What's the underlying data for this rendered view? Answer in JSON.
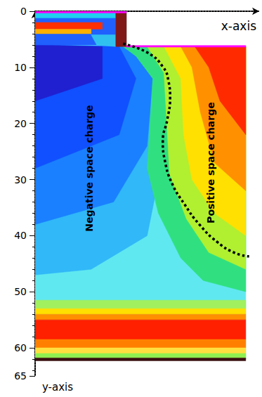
{
  "chart_data": {
    "type": "line",
    "x_label": "x-axis",
    "y_label": "y-axis",
    "xlim": [
      0,
      40
    ],
    "xticks": [],
    "ylim": [
      0,
      65
    ],
    "yticks": [
      0,
      10,
      20,
      30,
      40,
      50,
      60
    ],
    "tick_labels": "y",
    "grid": false,
    "series": [
      {
        "color": "#000000",
        "line_style": "dotted",
        "x": [
          15.7,
          20.1,
          22.8,
          23.8,
          24.1,
          23.6,
          22.8,
          23.2,
          24.4,
          26.6,
          29.4,
          32.6,
          35.7,
          38.2
        ],
        "values": [
          5.8,
          7.4,
          9.9,
          12.4,
          15.5,
          19.3,
          23.1,
          26.8,
          30.6,
          34.3,
          38.1,
          41.2,
          43.1,
          43.7
        ]
      }
    ],
    "annotations": [
      {
        "text": "Negative space charge",
        "x": 9.6,
        "y": 28
      },
      {
        "text": "Positive space charge",
        "x": 31.3,
        "y": 27
      }
    ],
    "regions": [
      {
        "color": "#60e8f0",
        "points": [
          [
            0,
            0
          ],
          [
            16.3,
            0
          ],
          [
            16.3,
            6.3
          ],
          [
            37.6,
            6.3
          ],
          [
            37.6,
            62
          ],
          [
            0,
            62
          ]
        ]
      },
      {
        "color": "#30b8f8",
        "points": [
          [
            0,
            6
          ],
          [
            18,
            6.3
          ],
          [
            23,
            12
          ],
          [
            23,
            25
          ],
          [
            20,
            40
          ],
          [
            10,
            46
          ],
          [
            0,
            47
          ]
        ]
      },
      {
        "color": "#1a80ff",
        "points": [
          [
            0,
            6
          ],
          [
            17,
            6.3
          ],
          [
            21,
            12
          ],
          [
            20,
            24
          ],
          [
            14,
            34
          ],
          [
            0,
            38
          ]
        ]
      },
      {
        "color": "#1050ff",
        "points": [
          [
            0,
            6
          ],
          [
            15,
            6.3
          ],
          [
            18,
            12
          ],
          [
            15,
            22
          ],
          [
            0,
            28
          ]
        ]
      },
      {
        "color": "#2020d0",
        "points": [
          [
            0,
            6
          ],
          [
            12,
            6.3
          ],
          [
            12,
            12
          ],
          [
            0,
            16
          ]
        ]
      },
      {
        "color": "#30e080",
        "points": [
          [
            15.7,
            6.3
          ],
          [
            37.6,
            6.3
          ],
          [
            37.6,
            50
          ],
          [
            30,
            48
          ],
          [
            26,
            44
          ],
          [
            22,
            36
          ],
          [
            20,
            28
          ],
          [
            20.5,
            20
          ],
          [
            21,
            12
          ],
          [
            18,
            8
          ]
        ]
      },
      {
        "color": "#b0f030",
        "points": [
          [
            20,
            6.3
          ],
          [
            37.6,
            6.3
          ],
          [
            37.6,
            46
          ],
          [
            31,
            43
          ],
          [
            27,
            37
          ],
          [
            24,
            29
          ],
          [
            23.5,
            20
          ],
          [
            23,
            11
          ]
        ]
      },
      {
        "color": "#ffe000",
        "points": [
          [
            23,
            6.3
          ],
          [
            37.6,
            6.3
          ],
          [
            37.6,
            40
          ],
          [
            32,
            36
          ],
          [
            28,
            30
          ],
          [
            26.5,
            22
          ],
          [
            26,
            12
          ]
        ]
      },
      {
        "color": "#ff9000",
        "points": [
          [
            26,
            6.3
          ],
          [
            37.6,
            6.3
          ],
          [
            37.6,
            32
          ],
          [
            32,
            27
          ],
          [
            29.5,
            18
          ],
          [
            28,
            10
          ]
        ]
      },
      {
        "color": "#ff2a00",
        "points": [
          [
            28.5,
            6.3
          ],
          [
            37.6,
            6.3
          ],
          [
            37.6,
            22
          ],
          [
            33,
            16
          ],
          [
            31,
            10
          ]
        ]
      },
      {
        "color": "#2060ff",
        "points": [
          [
            0,
            0
          ],
          [
            14.4,
            0
          ],
          [
            14.4,
            6
          ],
          [
            0,
            6
          ]
        ]
      },
      {
        "color": "#20d0f0",
        "points": [
          [
            0,
            0.3
          ],
          [
            14.4,
            0.3
          ],
          [
            14.4,
            1.2
          ],
          [
            0,
            1.2
          ]
        ]
      },
      {
        "color": "#ff3000",
        "points": [
          [
            0,
            2
          ],
          [
            12,
            2
          ],
          [
            12,
            3.2
          ],
          [
            0,
            3.2
          ]
        ]
      },
      {
        "color": "#ffb000",
        "points": [
          [
            0,
            3.2
          ],
          [
            10,
            3.2
          ],
          [
            10,
            4
          ],
          [
            0,
            4
          ]
        ]
      },
      {
        "color": "#30c0f0",
        "points": [
          [
            10,
            4.2
          ],
          [
            14.4,
            4.2
          ],
          [
            14.4,
            6.3
          ],
          [
            11,
            6
          ]
        ]
      },
      {
        "color": "#801818",
        "points": [
          [
            14.4,
            0
          ],
          [
            16.3,
            0
          ],
          [
            16.3,
            6.3
          ],
          [
            14.4,
            6.3
          ]
        ]
      },
      {
        "color": "#a0f060",
        "points": [
          [
            0,
            51.5
          ],
          [
            37.6,
            51.5
          ],
          [
            37.6,
            53
          ],
          [
            0,
            53
          ]
        ]
      },
      {
        "color": "#ffe000",
        "points": [
          [
            0,
            53
          ],
          [
            37.6,
            53
          ],
          [
            37.6,
            54
          ],
          [
            0,
            54
          ]
        ]
      },
      {
        "color": "#ff9000",
        "points": [
          [
            0,
            54
          ],
          [
            37.6,
            54
          ],
          [
            37.6,
            55
          ],
          [
            0,
            55
          ]
        ]
      },
      {
        "color": "#ff2000",
        "points": [
          [
            0,
            55
          ],
          [
            37.6,
            55
          ],
          [
            37.6,
            58.5
          ],
          [
            0,
            58.5
          ]
        ]
      },
      {
        "color": "#ff8000",
        "points": [
          [
            0,
            58.5
          ],
          [
            37.6,
            58.5
          ],
          [
            37.6,
            60
          ],
          [
            0,
            60
          ]
        ]
      },
      {
        "color": "#ffe040",
        "points": [
          [
            0,
            60
          ],
          [
            37.6,
            60
          ],
          [
            37.6,
            61
          ],
          [
            0,
            61
          ]
        ]
      },
      {
        "color": "#90f050",
        "points": [
          [
            0,
            61
          ],
          [
            37.6,
            61
          ],
          [
            37.6,
            62
          ],
          [
            0,
            62
          ]
        ]
      },
      {
        "color": "#3a1010",
        "points": [
          [
            0,
            61.8
          ],
          [
            37.6,
            61.8
          ],
          [
            37.6,
            62.3
          ],
          [
            0,
            62.3
          ]
        ]
      },
      {
        "color": "#ff00ff",
        "points": [
          [
            0,
            0
          ],
          [
            16.3,
            0
          ],
          [
            16.3,
            0.3
          ],
          [
            0,
            0.3
          ]
        ]
      },
      {
        "color": "#ff00ff",
        "points": [
          [
            16.3,
            6.1
          ],
          [
            37.6,
            6.1
          ],
          [
            37.6,
            6.4
          ],
          [
            16.3,
            6.4
          ]
        ]
      }
    ]
  }
}
